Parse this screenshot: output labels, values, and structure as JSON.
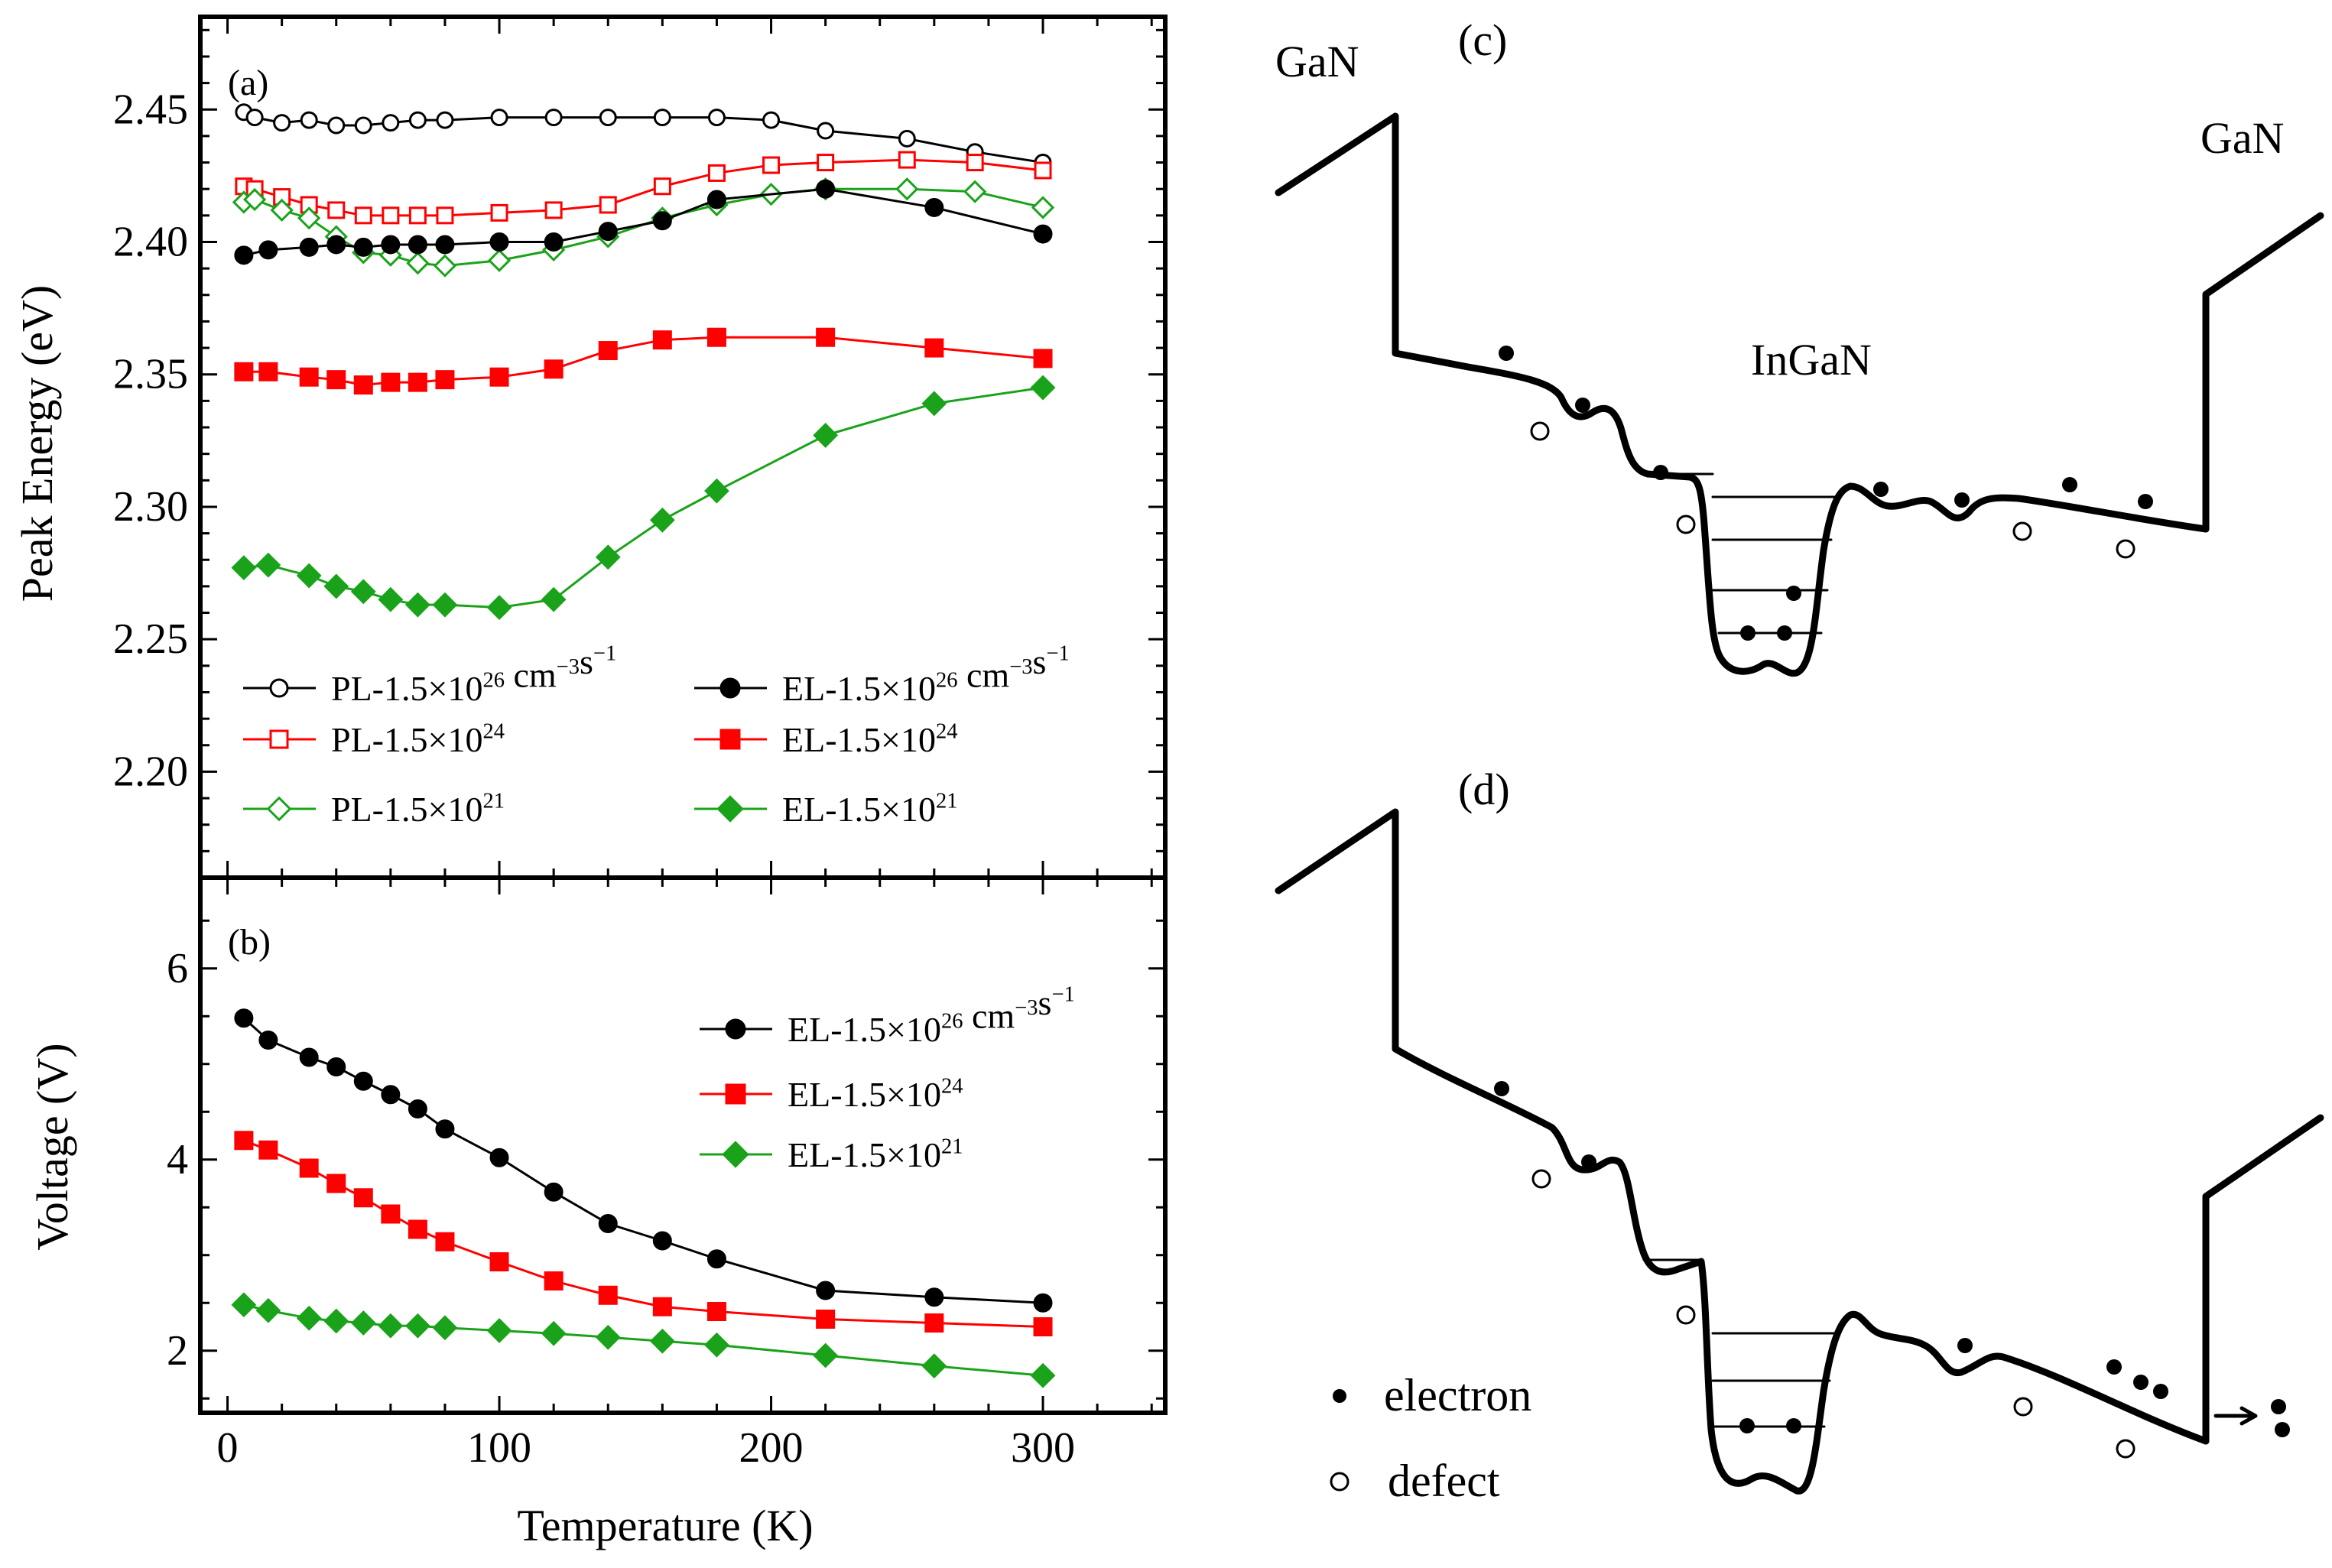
{
  "figure": {
    "panel_a_label": "(a)",
    "panel_b_label": "(b)",
    "panel_c_label": "(c)",
    "panel_d_label": "(d)"
  },
  "chart_data": [
    {
      "type": "line",
      "panel": "(a)",
      "title": "",
      "xlabel": "Temperature (K)",
      "ylabel": "Peak Energy (eV)",
      "xlim": [
        -10,
        345
      ],
      "ylim": [
        2.16,
        2.485
      ],
      "xticks": [
        0,
        100,
        200,
        300
      ],
      "yticks": [
        2.2,
        2.25,
        2.3,
        2.35,
        2.4,
        2.45
      ],
      "ytick_labels": [
        "2.20",
        "2.25",
        "2.30",
        "2.35",
        "2.40",
        "2.45"
      ],
      "legend_position": "lower",
      "series": [
        {
          "name": "PL-1.5×10^26 cm^-3 s^-1",
          "label_main": "PL-1.5×10",
          "label_exp": "26",
          "label_unit": "cm",
          "label_unit_exp": "−3",
          "label_unit2": "s",
          "label_unit2_exp": "−1",
          "color": "#000000",
          "marker": "circle",
          "filled": false,
          "x": [
            6,
            10,
            20,
            30,
            40,
            50,
            60,
            70,
            80,
            100,
            120,
            140,
            160,
            180,
            200,
            220,
            250,
            275,
            300
          ],
          "y": [
            2.449,
            2.447,
            2.445,
            2.446,
            2.444,
            2.444,
            2.445,
            2.446,
            2.446,
            2.447,
            2.447,
            2.447,
            2.447,
            2.447,
            2.446,
            2.442,
            2.439,
            2.434,
            2.43
          ]
        },
        {
          "name": "PL-1.5×10^24",
          "label_main": "PL-1.5×10",
          "label_exp": "24",
          "color": "#ff0000",
          "marker": "square",
          "filled": false,
          "x": [
            6,
            10,
            20,
            30,
            40,
            50,
            60,
            70,
            80,
            100,
            120,
            140,
            160,
            180,
            200,
            220,
            250,
            275,
            300
          ],
          "y": [
            2.421,
            2.42,
            2.417,
            2.414,
            2.412,
            2.41,
            2.41,
            2.41,
            2.41,
            2.411,
            2.412,
            2.414,
            2.421,
            2.426,
            2.429,
            2.43,
            2.431,
            2.43,
            2.427
          ]
        },
        {
          "name": "PL-1.5×10^21",
          "label_main": "PL-1.5×10",
          "label_exp": "21",
          "color": "#1aa31a",
          "marker": "diamond",
          "filled": false,
          "x": [
            6,
            10,
            20,
            30,
            40,
            50,
            60,
            70,
            80,
            100,
            120,
            140,
            160,
            180,
            200,
            220,
            250,
            275,
            300
          ],
          "y": [
            2.415,
            2.416,
            2.412,
            2.409,
            2.402,
            2.396,
            2.395,
            2.392,
            2.391,
            2.393,
            2.397,
            2.402,
            2.409,
            2.414,
            2.418,
            2.42,
            2.42,
            2.419,
            2.413
          ]
        },
        {
          "name": "EL-1.5×10^26 cm^-3 s^-1",
          "label_main": "EL-1.5×10",
          "label_exp": "26",
          "label_unit": "cm",
          "label_unit_exp": "−3",
          "label_unit2": "s",
          "label_unit2_exp": "−1",
          "color": "#000000",
          "marker": "circle",
          "filled": true,
          "x": [
            6,
            15,
            30,
            40,
            50,
            60,
            70,
            80,
            100,
            120,
            140,
            160,
            180,
            220,
            260,
            300
          ],
          "y": [
            2.395,
            2.397,
            2.398,
            2.399,
            2.398,
            2.399,
            2.399,
            2.399,
            2.4,
            2.4,
            2.404,
            2.408,
            2.416,
            2.42,
            2.413,
            2.403
          ]
        },
        {
          "name": "EL-1.5×10^24",
          "label_main": "EL-1.5×10",
          "label_exp": "24",
          "color": "#ff0000",
          "marker": "square",
          "filled": true,
          "x": [
            6,
            15,
            30,
            40,
            50,
            60,
            70,
            80,
            100,
            120,
            140,
            160,
            180,
            220,
            260,
            300
          ],
          "y": [
            2.351,
            2.351,
            2.349,
            2.348,
            2.346,
            2.347,
            2.347,
            2.348,
            2.349,
            2.352,
            2.359,
            2.363,
            2.364,
            2.364,
            2.36,
            2.356
          ]
        },
        {
          "name": "EL-1.5×10^21",
          "label_main": "EL-1.5×10",
          "label_exp": "21",
          "color": "#1aa31a",
          "marker": "diamond",
          "filled": true,
          "x": [
            6,
            15,
            30,
            40,
            50,
            60,
            70,
            80,
            100,
            120,
            140,
            160,
            180,
            220,
            260,
            300
          ],
          "y": [
            2.277,
            2.278,
            2.274,
            2.27,
            2.268,
            2.265,
            2.263,
            2.263,
            2.262,
            2.265,
            2.281,
            2.295,
            2.306,
            2.327,
            2.339,
            2.345
          ]
        }
      ]
    },
    {
      "type": "line",
      "panel": "(b)",
      "title": "",
      "xlabel": "Temperature (K)",
      "ylabel": "Voltage (V)",
      "xlim": [
        -10,
        345
      ],
      "ylim": [
        1.35,
        6.95
      ],
      "xticks": [
        0,
        100,
        200,
        300
      ],
      "xtick_labels": [
        "0",
        "100",
        "200",
        "300"
      ],
      "yticks": [
        2,
        4,
        6
      ],
      "ytick_labels": [
        "2",
        "4",
        "6"
      ],
      "legend_position": "top-right",
      "series": [
        {
          "name": "EL-1.5×10^26 cm^-3 s^-1",
          "label_main": "EL-1.5×10",
          "label_exp": "26",
          "label_unit": "cm",
          "label_unit_exp": "−3",
          "label_unit2": "s",
          "label_unit2_exp": "−1",
          "color": "#000000",
          "marker": "circle",
          "filled": true,
          "x": [
            6,
            15,
            30,
            40,
            50,
            60,
            70,
            80,
            100,
            120,
            140,
            160,
            180,
            220,
            260,
            300
          ],
          "y": [
            5.48,
            5.25,
            5.07,
            4.97,
            4.82,
            4.68,
            4.53,
            4.32,
            4.02,
            3.66,
            3.33,
            3.15,
            2.96,
            2.63,
            2.56,
            2.5
          ]
        },
        {
          "name": "EL-1.5×10^24",
          "label_main": "EL-1.5×10",
          "label_exp": "24",
          "color": "#ff0000",
          "marker": "square",
          "filled": true,
          "x": [
            6,
            15,
            30,
            40,
            50,
            60,
            70,
            80,
            100,
            120,
            140,
            160,
            180,
            220,
            260,
            300
          ],
          "y": [
            4.2,
            4.1,
            3.91,
            3.75,
            3.6,
            3.43,
            3.27,
            3.14,
            2.93,
            2.73,
            2.58,
            2.46,
            2.41,
            2.33,
            2.29,
            2.25
          ]
        },
        {
          "name": "EL-1.5×10^21",
          "label_main": "EL-1.5×10",
          "label_exp": "21",
          "color": "#1aa31a",
          "marker": "diamond",
          "filled": true,
          "x": [
            6,
            15,
            30,
            40,
            50,
            60,
            70,
            80,
            100,
            120,
            140,
            160,
            180,
            220,
            260,
            300
          ],
          "y": [
            2.48,
            2.42,
            2.34,
            2.31,
            2.29,
            2.26,
            2.26,
            2.24,
            2.21,
            2.18,
            2.14,
            2.1,
            2.06,
            1.95,
            1.84,
            1.74
          ]
        }
      ]
    }
  ],
  "diagram_c": {
    "label": "(c)",
    "left_label": "GaN",
    "right_label": "GaN",
    "well_label": "InGaN"
  },
  "diagram_d": {
    "label": "(d)",
    "legend_electron": "electron",
    "legend_defect": "defect"
  }
}
